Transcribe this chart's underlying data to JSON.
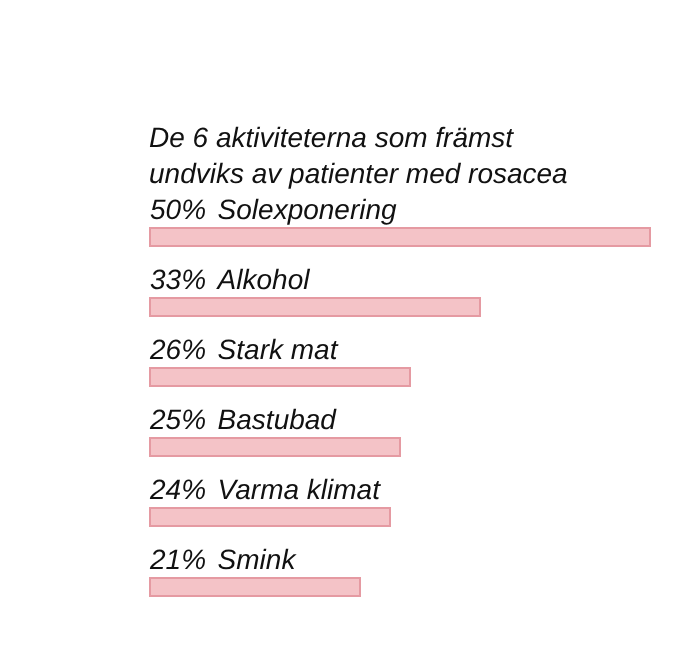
{
  "chart_data": {
    "type": "bar",
    "orientation": "horizontal",
    "title": "De 6 aktiviteterna som främst undviks av patienter med rosacea",
    "categories": [
      "Solexponering",
      "Alkohol",
      "Stark mat",
      "Bastubad",
      "Varma klimat",
      "Smink"
    ],
    "values": [
      50,
      33,
      26,
      25,
      24,
      21
    ],
    "value_labels": [
      "50%",
      "33%",
      "26%",
      "25%",
      "24%",
      "21%"
    ],
    "color": "#f4c3c7",
    "xlim": [
      0,
      50
    ],
    "tick_labels": false,
    "grid": false
  }
}
